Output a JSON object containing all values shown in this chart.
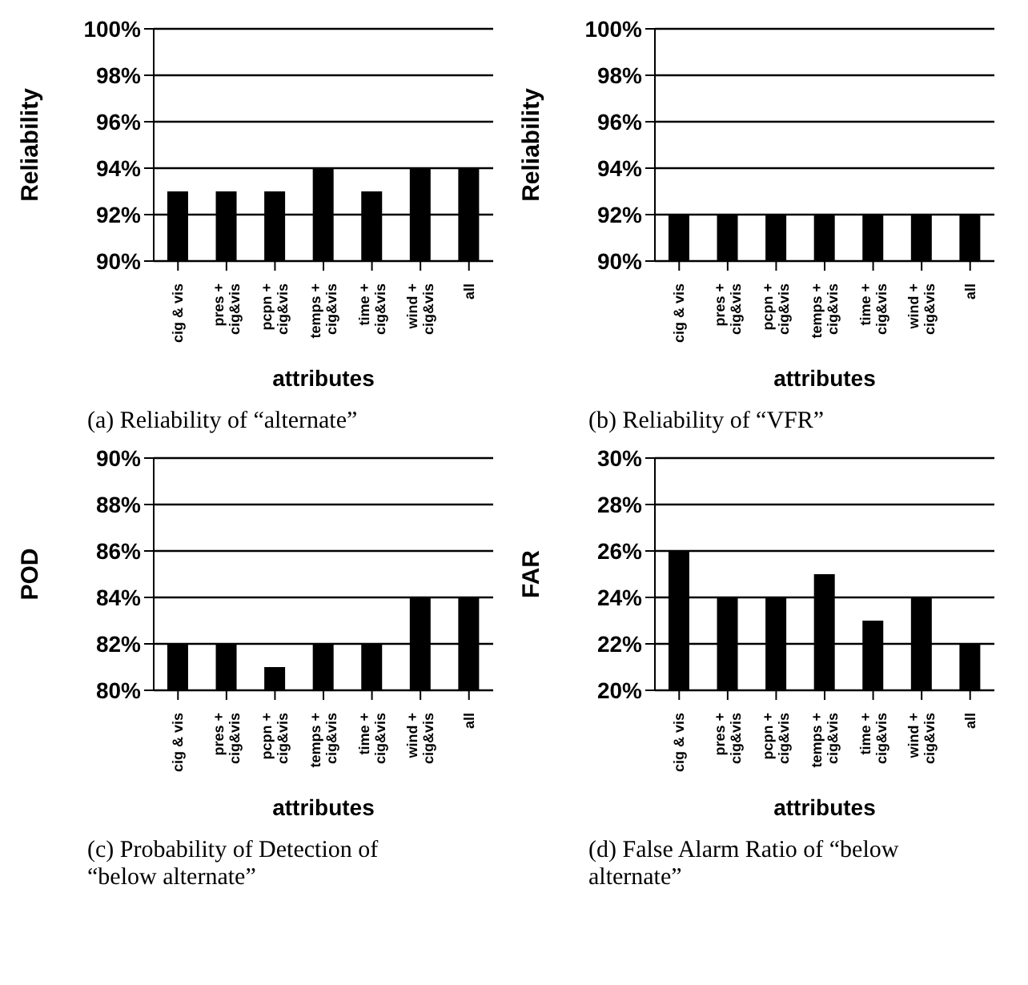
{
  "chart_data": [
    {
      "type": "bar",
      "title": "(a) Reliability of “alternate”",
      "xlabel": "attributes",
      "ylabel": "Reliability",
      "categories": [
        "cig & vis",
        "pres + cig&vis",
        "pcpn + cig&vis",
        "temps + cig&vis",
        "time + cig&vis",
        "wind + cig&vis",
        "all"
      ],
      "values": [
        93,
        93,
        93,
        94,
        93,
        94,
        94
      ],
      "color": "#000000",
      "ylim": [
        90,
        100
      ],
      "yticks": [
        {
          "value": 90,
          "label": "90%"
        },
        {
          "value": 92,
          "label": "92%"
        },
        {
          "value": 94,
          "label": "94%"
        },
        {
          "value": 96,
          "label": "96%"
        },
        {
          "value": 98,
          "label": "98%"
        },
        {
          "value": 100,
          "label": "100%"
        }
      ],
      "grid": "y"
    },
    {
      "type": "bar",
      "title": "(b) Reliability of “VFR”",
      "xlabel": "attributes",
      "ylabel": "Reliability",
      "categories": [
        "cig & vis",
        "pres + cig&vis",
        "pcpn + cig&vis",
        "temps + cig&vis",
        "time + cig&vis",
        "wind + cig&vis",
        "all"
      ],
      "values": [
        92,
        92,
        92,
        92,
        92,
        92,
        92
      ],
      "color": "#000000",
      "ylim": [
        90,
        100
      ],
      "yticks": [
        {
          "value": 90,
          "label": "90%"
        },
        {
          "value": 92,
          "label": "92%"
        },
        {
          "value": 94,
          "label": "94%"
        },
        {
          "value": 96,
          "label": "96%"
        },
        {
          "value": 98,
          "label": "98%"
        },
        {
          "value": 100,
          "label": "100%"
        }
      ],
      "grid": "y"
    },
    {
      "type": "bar",
      "title": "(c) Probability of Detection of “below alternate”",
      "xlabel": "attributes",
      "ylabel": "POD",
      "categories": [
        "cig & vis",
        "pres + cig&vis",
        "pcpn + cig&vis",
        "temps + cig&vis",
        "time + cig&vis",
        "wind + cig&vis",
        "all"
      ],
      "values": [
        82,
        82,
        81,
        82,
        82,
        84,
        84
      ],
      "color": "#000000",
      "ylim": [
        80,
        90
      ],
      "yticks": [
        {
          "value": 80,
          "label": "80%"
        },
        {
          "value": 82,
          "label": "82%"
        },
        {
          "value": 84,
          "label": "84%"
        },
        {
          "value": 86,
          "label": "86%"
        },
        {
          "value": 88,
          "label": "88%"
        },
        {
          "value": 90,
          "label": "90%"
        }
      ],
      "grid": "y"
    },
    {
      "type": "bar",
      "title": "(d) False Alarm Ratio of “below alternate”",
      "xlabel": "attributes",
      "ylabel": "FAR",
      "categories": [
        "cig & vis",
        "pres + cig&vis",
        "pcpn + cig&vis",
        "temps + cig&vis",
        "time + cig&vis",
        "wind + cig&vis",
        "all"
      ],
      "values": [
        26,
        24,
        24,
        25,
        23,
        24,
        22
      ],
      "color": "#000000",
      "ylim": [
        20,
        30
      ],
      "yticks": [
        {
          "value": 20,
          "label": "20%"
        },
        {
          "value": 22,
          "label": "22%"
        },
        {
          "value": 24,
          "label": "24%"
        },
        {
          "value": 26,
          "label": "26%"
        },
        {
          "value": 28,
          "label": "28%"
        },
        {
          "value": 30,
          "label": "30%"
        }
      ],
      "grid": "y"
    }
  ]
}
